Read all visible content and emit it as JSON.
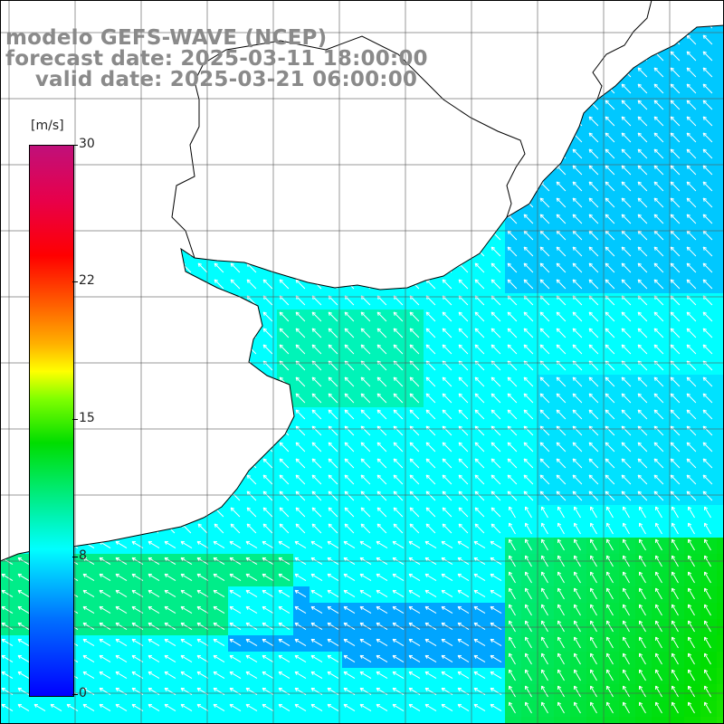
{
  "title": {
    "line1": "modelo GEFS-WAVE (NCEP)",
    "line2": "forecast date: 2025-03-11 18:00:00",
    "line3": "    valid date: 2025-03-21 06:00:00"
  },
  "colorbar": {
    "unit": "[m/s]",
    "min": 0,
    "max": 30,
    "ticks": [
      "30",
      "22",
      "15",
      "8",
      "0"
    ]
  },
  "colors": {
    "land": "#ffffff",
    "coastline": "#000000",
    "grid": "#555555",
    "arrow": "#ffffff",
    "title": "#8a8a8a"
  }
}
